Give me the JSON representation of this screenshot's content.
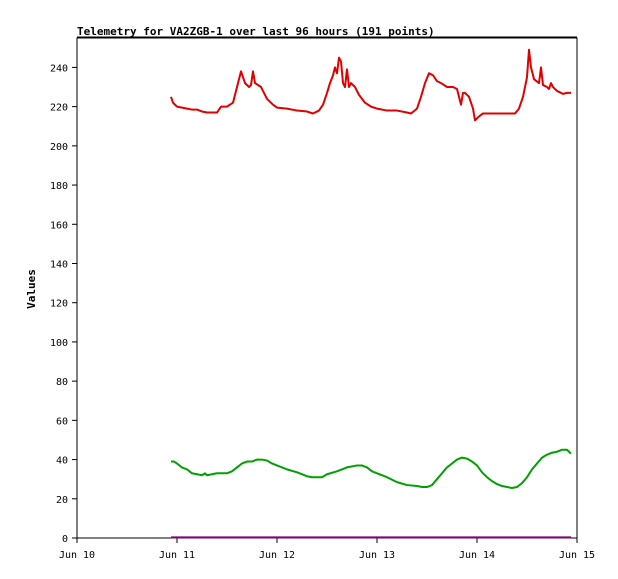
{
  "chart_data": {
    "type": "line",
    "title": "Telemetry for VA2ZGB-1 over last 96 hours (191 points)",
    "xlabel": "",
    "ylabel": "Values",
    "x_unit": "day (June 2024-like axis, value = day of month)",
    "xlim": [
      10,
      15
    ],
    "ylim": [
      0,
      255
    ],
    "x_ticks": [
      {
        "value": 10,
        "label": "Jun 10"
      },
      {
        "value": 11,
        "label": "Jun 11"
      },
      {
        "value": 12,
        "label": "Jun 12"
      },
      {
        "value": 13,
        "label": "Jun 13"
      },
      {
        "value": 14,
        "label": "Jun 14"
      },
      {
        "value": 15,
        "label": "Jun 15"
      }
    ],
    "y_ticks": [
      0,
      20,
      40,
      60,
      80,
      100,
      120,
      140,
      160,
      180,
      200,
      220,
      240
    ],
    "grid": false,
    "legend": "none",
    "series": [
      {
        "color": "#e00000",
        "points": [
          [
            10.94,
            225
          ],
          [
            10.96,
            222
          ],
          [
            11.0,
            220
          ],
          [
            11.05,
            219.5
          ],
          [
            11.1,
            219
          ],
          [
            11.15,
            218.5
          ],
          [
            11.2,
            218.5
          ],
          [
            11.25,
            217.5
          ],
          [
            11.3,
            217
          ],
          [
            11.4,
            217
          ],
          [
            11.44,
            220
          ],
          [
            11.5,
            220
          ],
          [
            11.56,
            222
          ],
          [
            11.6,
            230
          ],
          [
            11.64,
            238
          ],
          [
            11.68,
            232
          ],
          [
            11.72,
            230
          ],
          [
            11.74,
            231
          ],
          [
            11.76,
            238
          ],
          [
            11.78,
            232
          ],
          [
            11.84,
            230
          ],
          [
            11.9,
            224
          ],
          [
            11.96,
            221
          ],
          [
            12.0,
            219.5
          ],
          [
            12.1,
            219
          ],
          [
            12.2,
            218
          ],
          [
            12.3,
            217.5
          ],
          [
            12.36,
            216.5
          ],
          [
            12.42,
            218
          ],
          [
            12.46,
            221
          ],
          [
            12.5,
            227
          ],
          [
            12.53,
            232
          ],
          [
            12.56,
            236
          ],
          [
            12.58,
            240
          ],
          [
            12.6,
            237
          ],
          [
            12.62,
            245
          ],
          [
            12.64,
            243
          ],
          [
            12.66,
            232
          ],
          [
            12.68,
            230
          ],
          [
            12.7,
            239
          ],
          [
            12.72,
            230
          ],
          [
            12.74,
            232
          ],
          [
            12.78,
            230
          ],
          [
            12.82,
            226
          ],
          [
            12.88,
            222
          ],
          [
            12.94,
            220
          ],
          [
            13.0,
            219
          ],
          [
            13.1,
            218
          ],
          [
            13.2,
            218
          ],
          [
            13.3,
            217
          ],
          [
            13.34,
            216.5
          ],
          [
            13.4,
            219
          ],
          [
            13.44,
            225
          ],
          [
            13.48,
            232
          ],
          [
            13.52,
            237
          ],
          [
            13.56,
            236
          ],
          [
            13.6,
            233
          ],
          [
            13.64,
            232
          ],
          [
            13.7,
            230
          ],
          [
            13.76,
            230
          ],
          [
            13.8,
            229
          ],
          [
            13.84,
            221
          ],
          [
            13.86,
            227
          ],
          [
            13.88,
            227
          ],
          [
            13.92,
            225
          ],
          [
            13.96,
            219
          ],
          [
            13.98,
            213
          ],
          [
            14.02,
            215
          ],
          [
            14.06,
            216.5
          ],
          [
            14.2,
            216.5
          ],
          [
            14.3,
            216.5
          ],
          [
            14.38,
            216.5
          ],
          [
            14.42,
            219
          ],
          [
            14.46,
            225
          ],
          [
            14.5,
            235
          ],
          [
            14.52,
            249
          ],
          [
            14.54,
            240
          ],
          [
            14.57,
            234
          ],
          [
            14.62,
            232
          ],
          [
            14.64,
            240
          ],
          [
            14.66,
            231
          ],
          [
            14.7,
            230
          ],
          [
            14.72,
            229
          ],
          [
            14.74,
            232
          ],
          [
            14.76,
            230
          ],
          [
            14.8,
            228
          ],
          [
            14.86,
            226.5
          ],
          [
            14.9,
            227
          ],
          [
            14.94,
            227
          ]
        ]
      },
      {
        "color": "#00a000",
        "points": [
          [
            10.94,
            39
          ],
          [
            10.97,
            39
          ],
          [
            11.0,
            38
          ],
          [
            11.05,
            36
          ],
          [
            11.1,
            35
          ],
          [
            11.15,
            33
          ],
          [
            11.2,
            32.5
          ],
          [
            11.25,
            32
          ],
          [
            11.28,
            33
          ],
          [
            11.3,
            32
          ],
          [
            11.35,
            32.5
          ],
          [
            11.4,
            33
          ],
          [
            11.45,
            33
          ],
          [
            11.5,
            33
          ],
          [
            11.55,
            34
          ],
          [
            11.6,
            36
          ],
          [
            11.65,
            38
          ],
          [
            11.7,
            39
          ],
          [
            11.75,
            39
          ],
          [
            11.8,
            40
          ],
          [
            11.85,
            40
          ],
          [
            11.9,
            39.5
          ],
          [
            11.95,
            38
          ],
          [
            12.0,
            37
          ],
          [
            12.1,
            35
          ],
          [
            12.2,
            33.5
          ],
          [
            12.3,
            31.5
          ],
          [
            12.35,
            31
          ],
          [
            12.45,
            31
          ],
          [
            12.5,
            32.5
          ],
          [
            12.6,
            34
          ],
          [
            12.7,
            36
          ],
          [
            12.8,
            37
          ],
          [
            12.85,
            37
          ],
          [
            12.9,
            36
          ],
          [
            12.95,
            34
          ],
          [
            13.0,
            33
          ],
          [
            13.1,
            31
          ],
          [
            13.2,
            28.5
          ],
          [
            13.3,
            27
          ],
          [
            13.4,
            26.5
          ],
          [
            13.45,
            26
          ],
          [
            13.5,
            26
          ],
          [
            13.55,
            27
          ],
          [
            13.6,
            30
          ],
          [
            13.65,
            33
          ],
          [
            13.7,
            36
          ],
          [
            13.75,
            38
          ],
          [
            13.8,
            40
          ],
          [
            13.85,
            41
          ],
          [
            13.9,
            40.5
          ],
          [
            13.95,
            39
          ],
          [
            14.0,
            37
          ],
          [
            14.05,
            33.5
          ],
          [
            14.1,
            31
          ],
          [
            14.15,
            29
          ],
          [
            14.2,
            27.5
          ],
          [
            14.25,
            26.5
          ],
          [
            14.3,
            26
          ],
          [
            14.35,
            25.5
          ],
          [
            14.4,
            26
          ],
          [
            14.45,
            28
          ],
          [
            14.5,
            31
          ],
          [
            14.55,
            35
          ],
          [
            14.6,
            38
          ],
          [
            14.65,
            41
          ],
          [
            14.7,
            42.5
          ],
          [
            14.75,
            43.5
          ],
          [
            14.8,
            44
          ],
          [
            14.85,
            45
          ],
          [
            14.9,
            45
          ],
          [
            14.94,
            43
          ]
        ]
      },
      {
        "color": "#880088",
        "points": [
          [
            10.94,
            0.3
          ],
          [
            11.5,
            0.3
          ],
          [
            12.0,
            0.3
          ],
          [
            12.5,
            0.3
          ],
          [
            13.0,
            0.3
          ],
          [
            13.5,
            0.3
          ],
          [
            14.0,
            0.3
          ],
          [
            14.5,
            0.3
          ],
          [
            14.94,
            0.3
          ]
        ]
      }
    ]
  }
}
